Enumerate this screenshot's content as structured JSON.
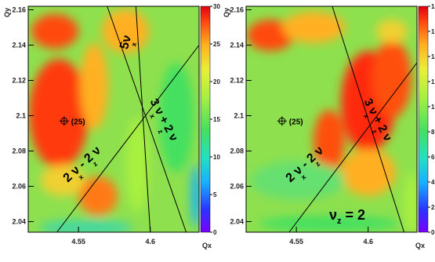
{
  "chart_data": [
    {
      "type": "heatmap",
      "xlabel": "Qx",
      "ylabel": "Qy",
      "xlim": [
        4.515,
        4.634
      ],
      "ylim": [
        2.034,
        2.162
      ],
      "x_ticks": [
        "4.55",
        "4.6"
      ],
      "x_tick_values": [
        4.55,
        4.6
      ],
      "y_ticks": [
        "2.04",
        "2.06",
        "2.08",
        "2.1",
        "2.12",
        "2.14",
        "2.16"
      ],
      "y_tick_values": [
        2.04,
        2.06,
        2.08,
        2.1,
        2.12,
        2.14,
        2.16
      ],
      "colorbar": {
        "min": 0,
        "max": 30,
        "ticks": [
          0,
          5,
          10,
          15,
          20,
          25,
          30
        ]
      },
      "marker": {
        "x": 4.54,
        "y": 2.097,
        "label": "(25)"
      },
      "resonance_lines": [
        {
          "label": "5νx",
          "text": "5ν",
          "sub": "x",
          "x1": 4.59,
          "y1": 2.162,
          "x2": 4.6,
          "y2": 2.034
        },
        {
          "label": "2νx - 2νz",
          "text": "2 ν - 2 ν",
          "sub": "x        z",
          "x1": 4.535,
          "y1": 2.034,
          "x2": 4.634,
          "y2": 2.14
        },
        {
          "label": "3νx + 2νz",
          "text": "3 ν + 2 ν",
          "sub": "x       z",
          "x1": 4.57,
          "y1": 2.162,
          "x2": 4.625,
          "y2": 2.034
        }
      ]
    },
    {
      "type": "heatmap",
      "xlabel": "Qx",
      "ylabel": "Qy",
      "xlim": [
        4.515,
        4.634
      ],
      "ylim": [
        2.034,
        2.162
      ],
      "x_ticks": [
        "4.55",
        "4.6"
      ],
      "x_tick_values": [
        4.55,
        4.6
      ],
      "y_ticks": [
        "2.04",
        "2.06",
        "2.08",
        "2.1",
        "2.12",
        "2.14",
        "2.16"
      ],
      "y_tick_values": [
        2.04,
        2.06,
        2.08,
        2.1,
        2.12,
        2.14,
        2.16
      ],
      "colorbar": {
        "min": 0,
        "max": 18,
        "ticks": [
          0,
          2,
          4,
          6,
          8,
          10,
          12,
          14,
          16,
          18
        ]
      },
      "marker": {
        "x": 4.54,
        "y": 2.097,
        "label": "(25)"
      },
      "annotation": {
        "text": "ν",
        "sub": "z",
        "rest": " = 2"
      },
      "resonance_lines": [
        {
          "label": "2νx - 2νz",
          "text": "2 ν - 2 ν",
          "sub": "x        z",
          "x1": 4.545,
          "y1": 2.034,
          "x2": 4.634,
          "y2": 2.13
        },
        {
          "label": "3νx + 2νz",
          "text": "3 ν + 2 ν",
          "sub": "x       z",
          "x1": 4.575,
          "y1": 2.162,
          "x2": 4.625,
          "y2": 2.034
        }
      ]
    }
  ],
  "colors": {
    "scale": [
      "#7a00ff",
      "#2a34ff",
      "#18b0ff",
      "#24e0c0",
      "#44e060",
      "#a8f040",
      "#e8f038",
      "#ffb020",
      "#ff4a10",
      "#e00010"
    ]
  }
}
